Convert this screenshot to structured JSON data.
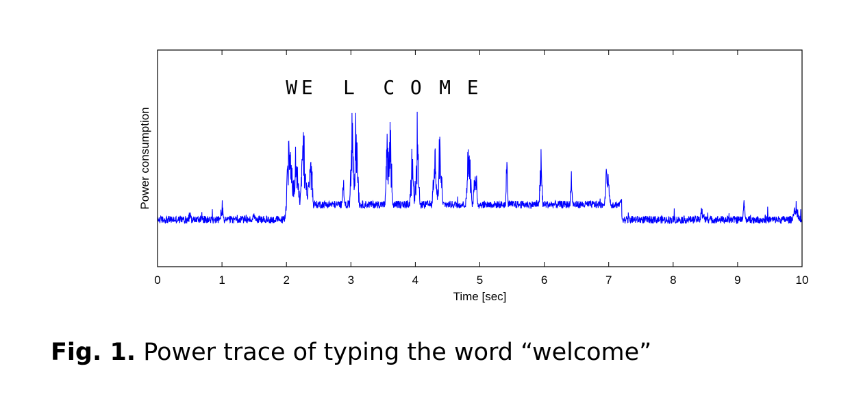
{
  "chart_data": {
    "type": "line",
    "xlabel": "Time [sec]",
    "ylabel": "Power consumption",
    "xlim": [
      0,
      10
    ],
    "ylim": [
      0,
      1
    ],
    "x_ticks": [
      "0",
      "1",
      "2",
      "3",
      "4",
      "5",
      "6",
      "7",
      "8",
      "9",
      "10"
    ],
    "grid": false,
    "line_color": "#0000ff",
    "key_annotations": [
      {
        "label": "W",
        "x": 2.08
      },
      {
        "label": "E",
        "x": 2.32
      },
      {
        "label": "L",
        "x": 2.97
      },
      {
        "label": "C",
        "x": 3.59
      },
      {
        "label": "O",
        "x": 4.01
      },
      {
        "label": "M",
        "x": 4.46
      },
      {
        "label": "E",
        "x": 4.89
      }
    ],
    "baseline_segments": [
      {
        "x_start": 0.0,
        "x_end": 2.0,
        "level": 0.21
      },
      {
        "x_start": 2.0,
        "x_end": 7.2,
        "level": 0.28
      },
      {
        "x_start": 7.2,
        "x_end": 10.0,
        "level": 0.21
      }
    ],
    "bursts": [
      {
        "x": 0.5,
        "height": 0.25,
        "width": 0.03
      },
      {
        "x": 1.0,
        "height": 0.3,
        "width": 0.03
      },
      {
        "x": 1.5,
        "height": 0.25,
        "width": 0.03
      },
      {
        "x": 2.05,
        "height": 0.63,
        "width": 0.08
      },
      {
        "x": 2.15,
        "height": 0.6,
        "width": 0.06
      },
      {
        "x": 2.27,
        "height": 0.68,
        "width": 0.06
      },
      {
        "x": 2.37,
        "height": 0.62,
        "width": 0.05
      },
      {
        "x": 2.88,
        "height": 0.46,
        "width": 0.02
      },
      {
        "x": 3.02,
        "height": 0.78,
        "width": 0.04
      },
      {
        "x": 3.08,
        "height": 0.78,
        "width": 0.05
      },
      {
        "x": 3.57,
        "height": 0.72,
        "width": 0.04
      },
      {
        "x": 3.61,
        "height": 0.77,
        "width": 0.04
      },
      {
        "x": 3.95,
        "height": 0.6,
        "width": 0.04
      },
      {
        "x": 4.03,
        "height": 0.73,
        "width": 0.04
      },
      {
        "x": 4.3,
        "height": 0.63,
        "width": 0.04
      },
      {
        "x": 4.38,
        "height": 0.66,
        "width": 0.05
      },
      {
        "x": 4.83,
        "height": 0.7,
        "width": 0.05
      },
      {
        "x": 4.93,
        "height": 0.55,
        "width": 0.04
      },
      {
        "x": 5.42,
        "height": 0.58,
        "width": 0.02
      },
      {
        "x": 5.95,
        "height": 0.59,
        "width": 0.03
      },
      {
        "x": 6.42,
        "height": 0.47,
        "width": 0.02
      },
      {
        "x": 6.98,
        "height": 0.52,
        "width": 0.05
      },
      {
        "x": 7.2,
        "height": 0.3,
        "width": 0.03
      },
      {
        "x": 8.45,
        "height": 0.27,
        "width": 0.04
      },
      {
        "x": 9.1,
        "height": 0.33,
        "width": 0.03
      },
      {
        "x": 9.9,
        "height": 0.3,
        "width": 0.06
      }
    ]
  },
  "caption": {
    "label": "Fig. 1.",
    "text": " Power trace of typing the word “welcome”"
  }
}
